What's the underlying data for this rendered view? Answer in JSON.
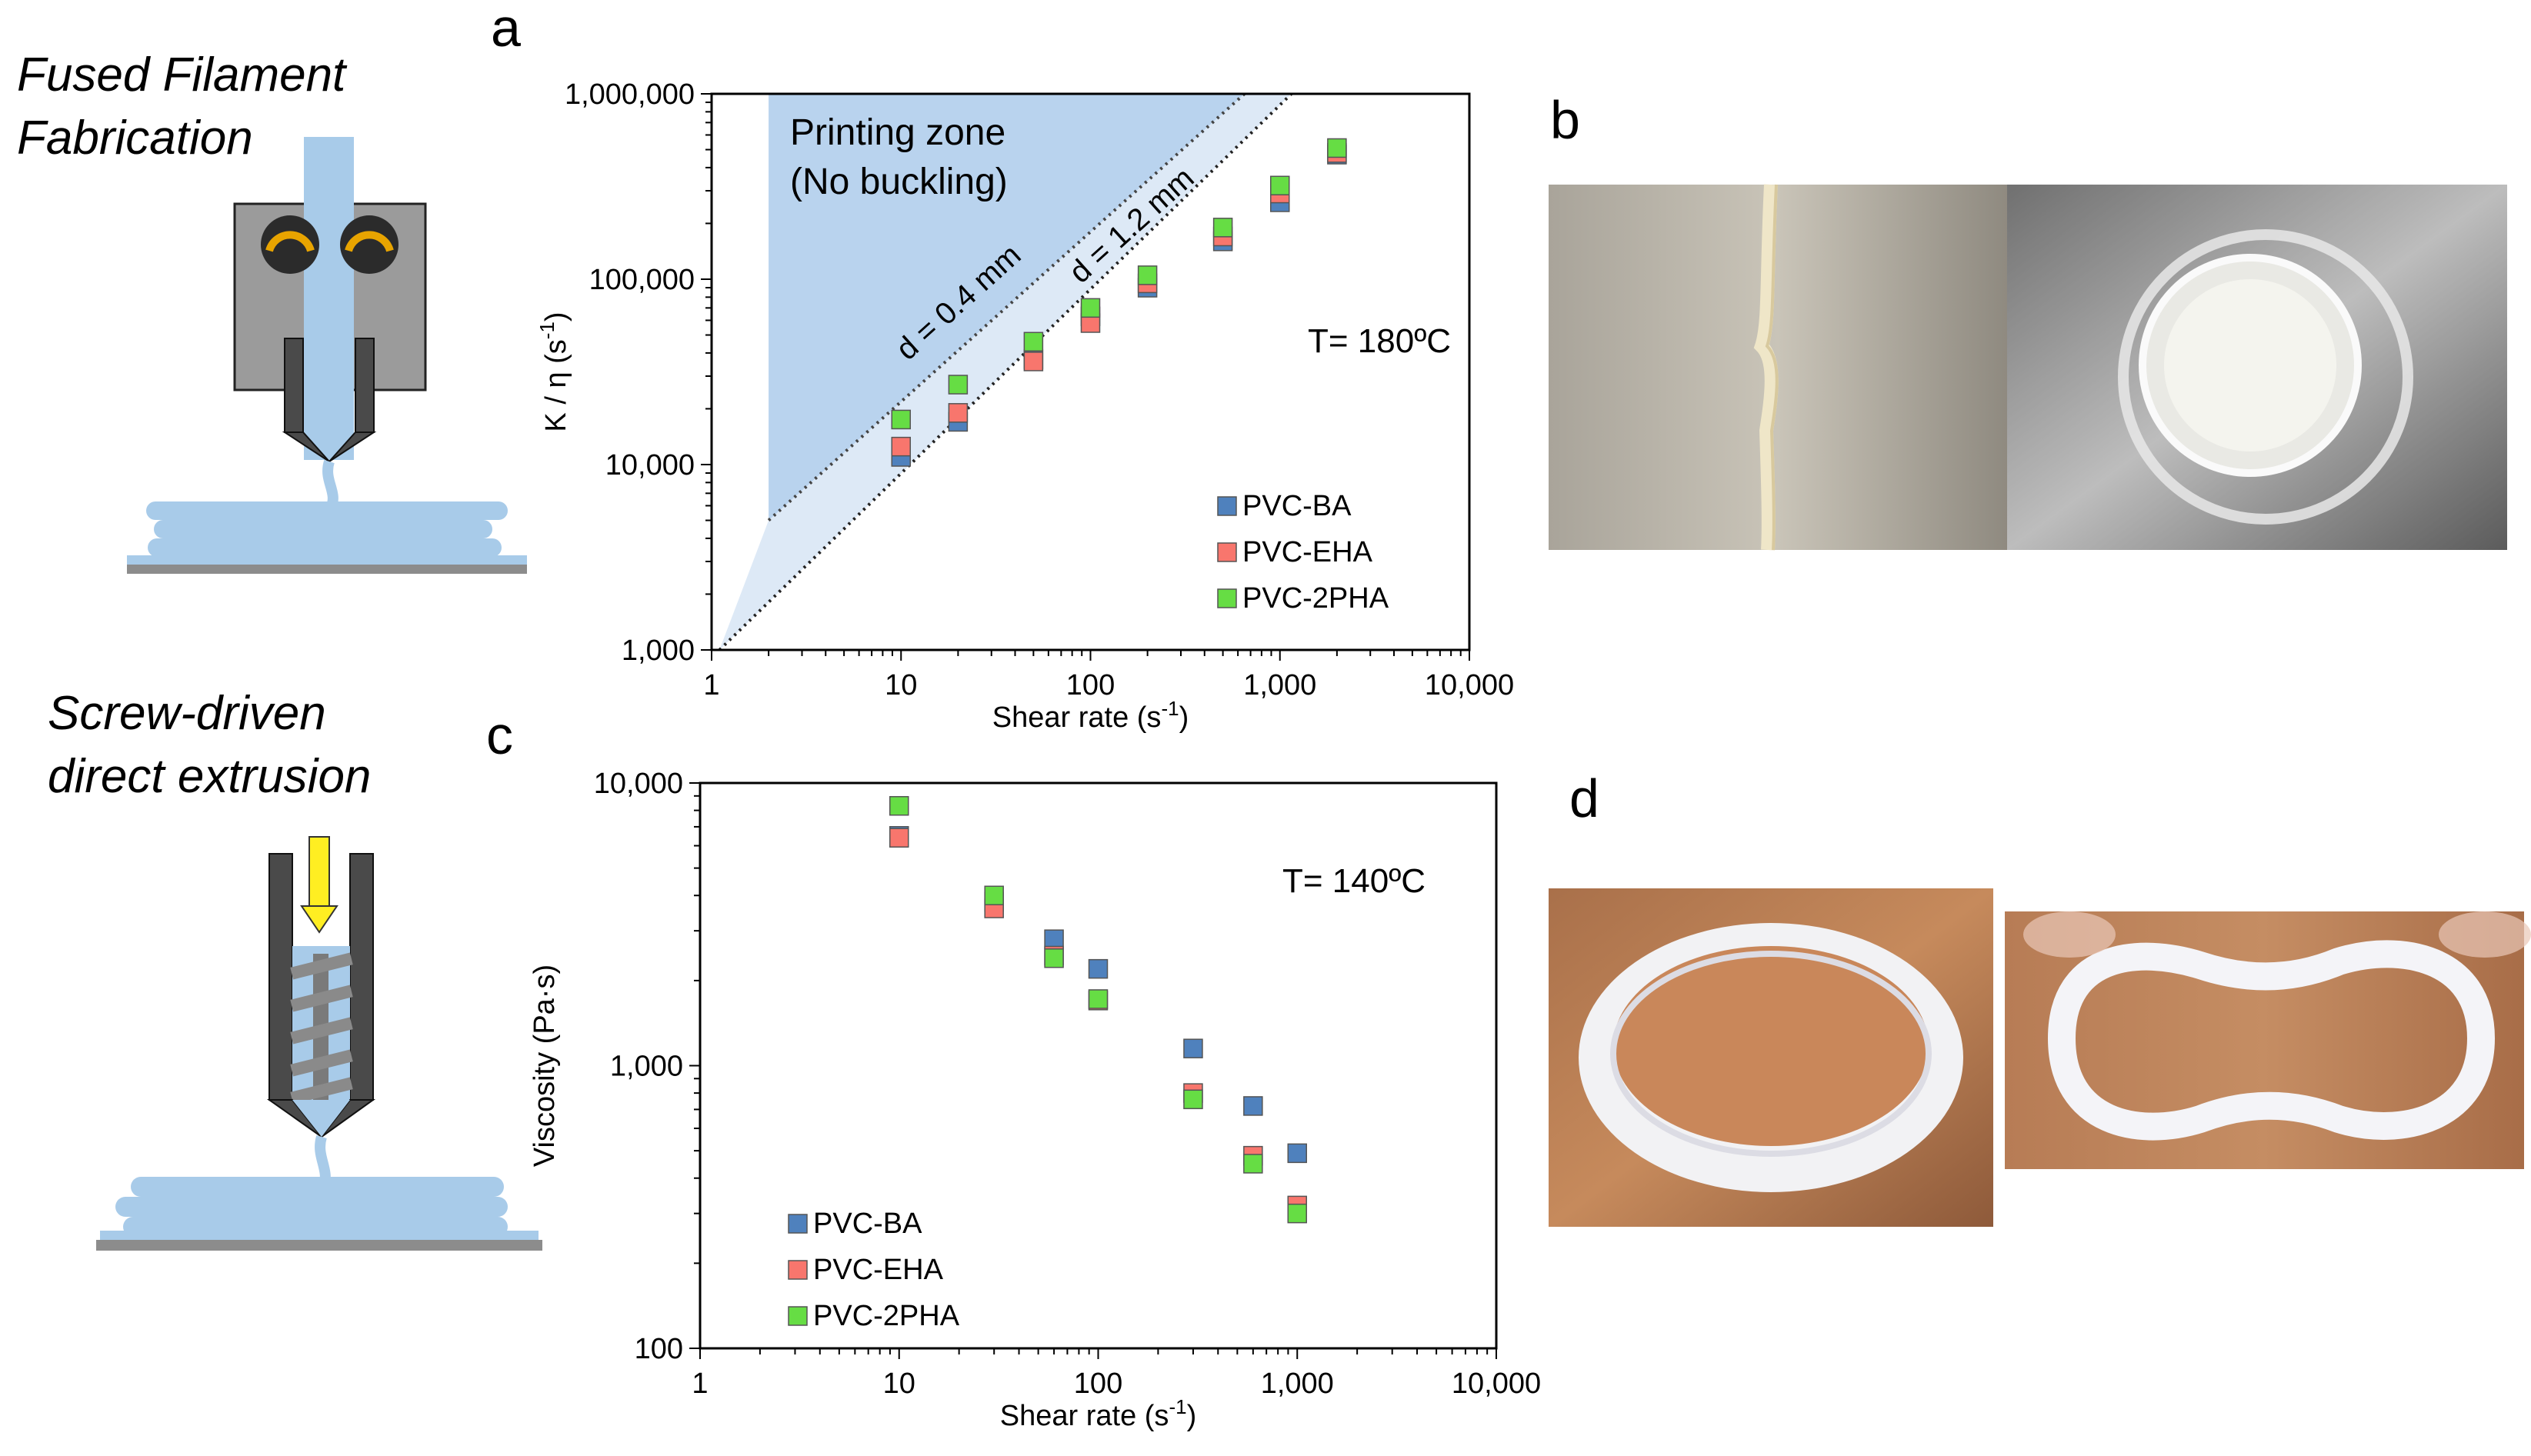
{
  "panel_labels": {
    "a": "a",
    "b": "b",
    "c": "c",
    "d": "d"
  },
  "schematics": {
    "fff_title_line1": "Fused Filament",
    "fff_title_line2": "Fabrication",
    "screw_title_line1": "Screw-driven",
    "screw_title_line2": "direct extrusion"
  },
  "colors": {
    "pvc_ba": "#4f81bd",
    "pvc_eha": "#f8766d",
    "pvc_2pha": "#66dd44",
    "printing_zone_dark": "#b9d3ee",
    "printing_zone_light": "#dde9f6",
    "filament_blue": "#a8cbe9"
  },
  "chart_data": [
    {
      "panel": "a",
      "type": "scatter",
      "xlabel": "Shear rate (s-1)",
      "ylabel": "K / η (s-1)",
      "x_scale": "log",
      "y_scale": "log",
      "xlim": [
        1,
        10000
      ],
      "ylim": [
        1000,
        1000000
      ],
      "x_ticks": [
        "1",
        "10",
        "100",
        "1,000",
        "10,000"
      ],
      "y_ticks": [
        "1,000",
        "10,000",
        "100,000",
        "1,000,000"
      ],
      "grid": false,
      "legend_placement": "bottom-right",
      "annotations": {
        "temperature": "T= 180ºC",
        "zone_line1": "Printing zone",
        "zone_line2": "(No buckling)",
        "line_04": "d = 0.4 mm",
        "line_12": "d = 1.2 mm"
      },
      "series": [
        {
          "name": "PVC-BA",
          "x": [
            10,
            20,
            50,
            100,
            200,
            500,
            1000,
            2000
          ],
          "y": [
            11000,
            17000,
            37000,
            63000,
            90000,
            160000,
            260000,
            470000
          ]
        },
        {
          "name": "PVC-EHA",
          "x": [
            10,
            20,
            50,
            100,
            200,
            500,
            1000,
            2000
          ],
          "y": [
            12500,
            19000,
            36000,
            58000,
            95000,
            170000,
            290000,
            480000
          ]
        },
        {
          "name": "PVC-2PHA",
          "x": [
            10,
            20,
            50,
            100,
            200,
            500,
            1000,
            2000
          ],
          "y": [
            17500,
            27000,
            46000,
            70000,
            105000,
            190000,
            320000,
            510000
          ]
        }
      ]
    },
    {
      "panel": "c",
      "type": "scatter",
      "xlabel": "Shear rate (s-1)",
      "ylabel": "Viscosity (Pa·s)",
      "x_scale": "log",
      "y_scale": "log",
      "xlim": [
        1,
        10000
      ],
      "ylim": [
        100,
        10000
      ],
      "x_ticks": [
        "1",
        "10",
        "100",
        "1,000",
        "10,000"
      ],
      "y_ticks": [
        "100",
        "1,000",
        "10,000"
      ],
      "grid": false,
      "legend_placement": "bottom-left",
      "annotations": {
        "temperature": "T= 140ºC"
      },
      "series": [
        {
          "name": "PVC-BA",
          "x": [
            10,
            30,
            60,
            100,
            300,
            600,
            1000
          ],
          "y": [
            6500,
            3800,
            2800,
            2200,
            1150,
            720,
            490
          ]
        },
        {
          "name": "PVC-EHA",
          "x": [
            10,
            30,
            60,
            100,
            300,
            600,
            1000
          ],
          "y": [
            6400,
            3600,
            2450,
            1700,
            800,
            480,
            320
          ]
        },
        {
          "name": "PVC-2PHA",
          "x": [
            10,
            30,
            60,
            100,
            300,
            600,
            1000
          ],
          "y": [
            8300,
            4000,
            2400,
            1720,
            760,
            450,
            300
          ]
        }
      ]
    }
  ]
}
